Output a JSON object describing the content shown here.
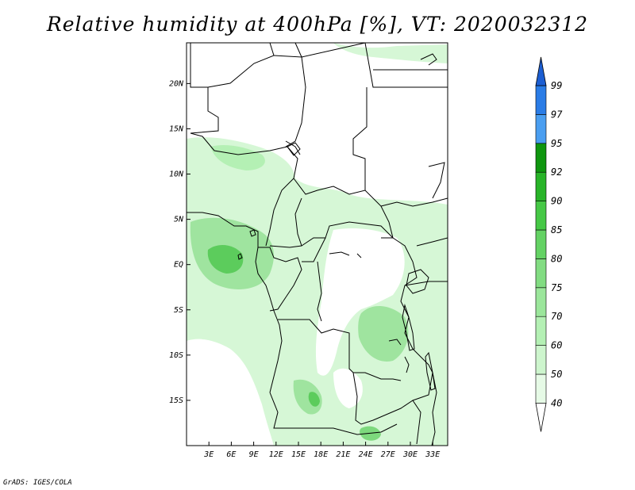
{
  "title": "Relative humidity at 400hPa [%], VT: 2020032312",
  "credit": "GrADS: IGES/COLA",
  "map": {
    "lon_range": [
      0,
      35
    ],
    "lat_range": [
      -20,
      24.5
    ],
    "lon_ticks": [
      {
        "value": 3,
        "label": "3E"
      },
      {
        "value": 6,
        "label": "6E"
      },
      {
        "value": 9,
        "label": "9E"
      },
      {
        "value": 12,
        "label": "12E"
      },
      {
        "value": 15,
        "label": "15E"
      },
      {
        "value": 18,
        "label": "18E"
      },
      {
        "value": 21,
        "label": "21E"
      },
      {
        "value": 24,
        "label": "24E"
      },
      {
        "value": 27,
        "label": "27E"
      },
      {
        "value": 30,
        "label": "30E"
      },
      {
        "value": 33,
        "label": "33E"
      }
    ],
    "lat_ticks": [
      {
        "value": 20,
        "label": "20N"
      },
      {
        "value": 15,
        "label": "15N"
      },
      {
        "value": 10,
        "label": "10N"
      },
      {
        "value": 5,
        "label": "5N"
      },
      {
        "value": 0,
        "label": "EQ"
      },
      {
        "value": -5,
        "label": "5S"
      },
      {
        "value": -10,
        "label": "10S"
      },
      {
        "value": -15,
        "label": "15S"
      }
    ]
  },
  "colorbar": {
    "levels": [
      "40",
      "50",
      "60",
      "70",
      "75",
      "80",
      "85",
      "90",
      "92",
      "95",
      "97",
      "99"
    ],
    "colors": [
      "#ffffff",
      "#e6fae6",
      "#cdf5cd",
      "#b4f0b4",
      "#9be69b",
      "#82dc82",
      "#64d264",
      "#46c846",
      "#28b428",
      "#0f960f",
      "#4a9ef0",
      "#2a7ce6",
      "#1c5ed2"
    ]
  },
  "colors": {
    "border": "#000000",
    "humidity_light": "#d6f7d6",
    "humidity_mid": "#9fe49f",
    "humidity_dark": "#5ccc5c"
  }
}
